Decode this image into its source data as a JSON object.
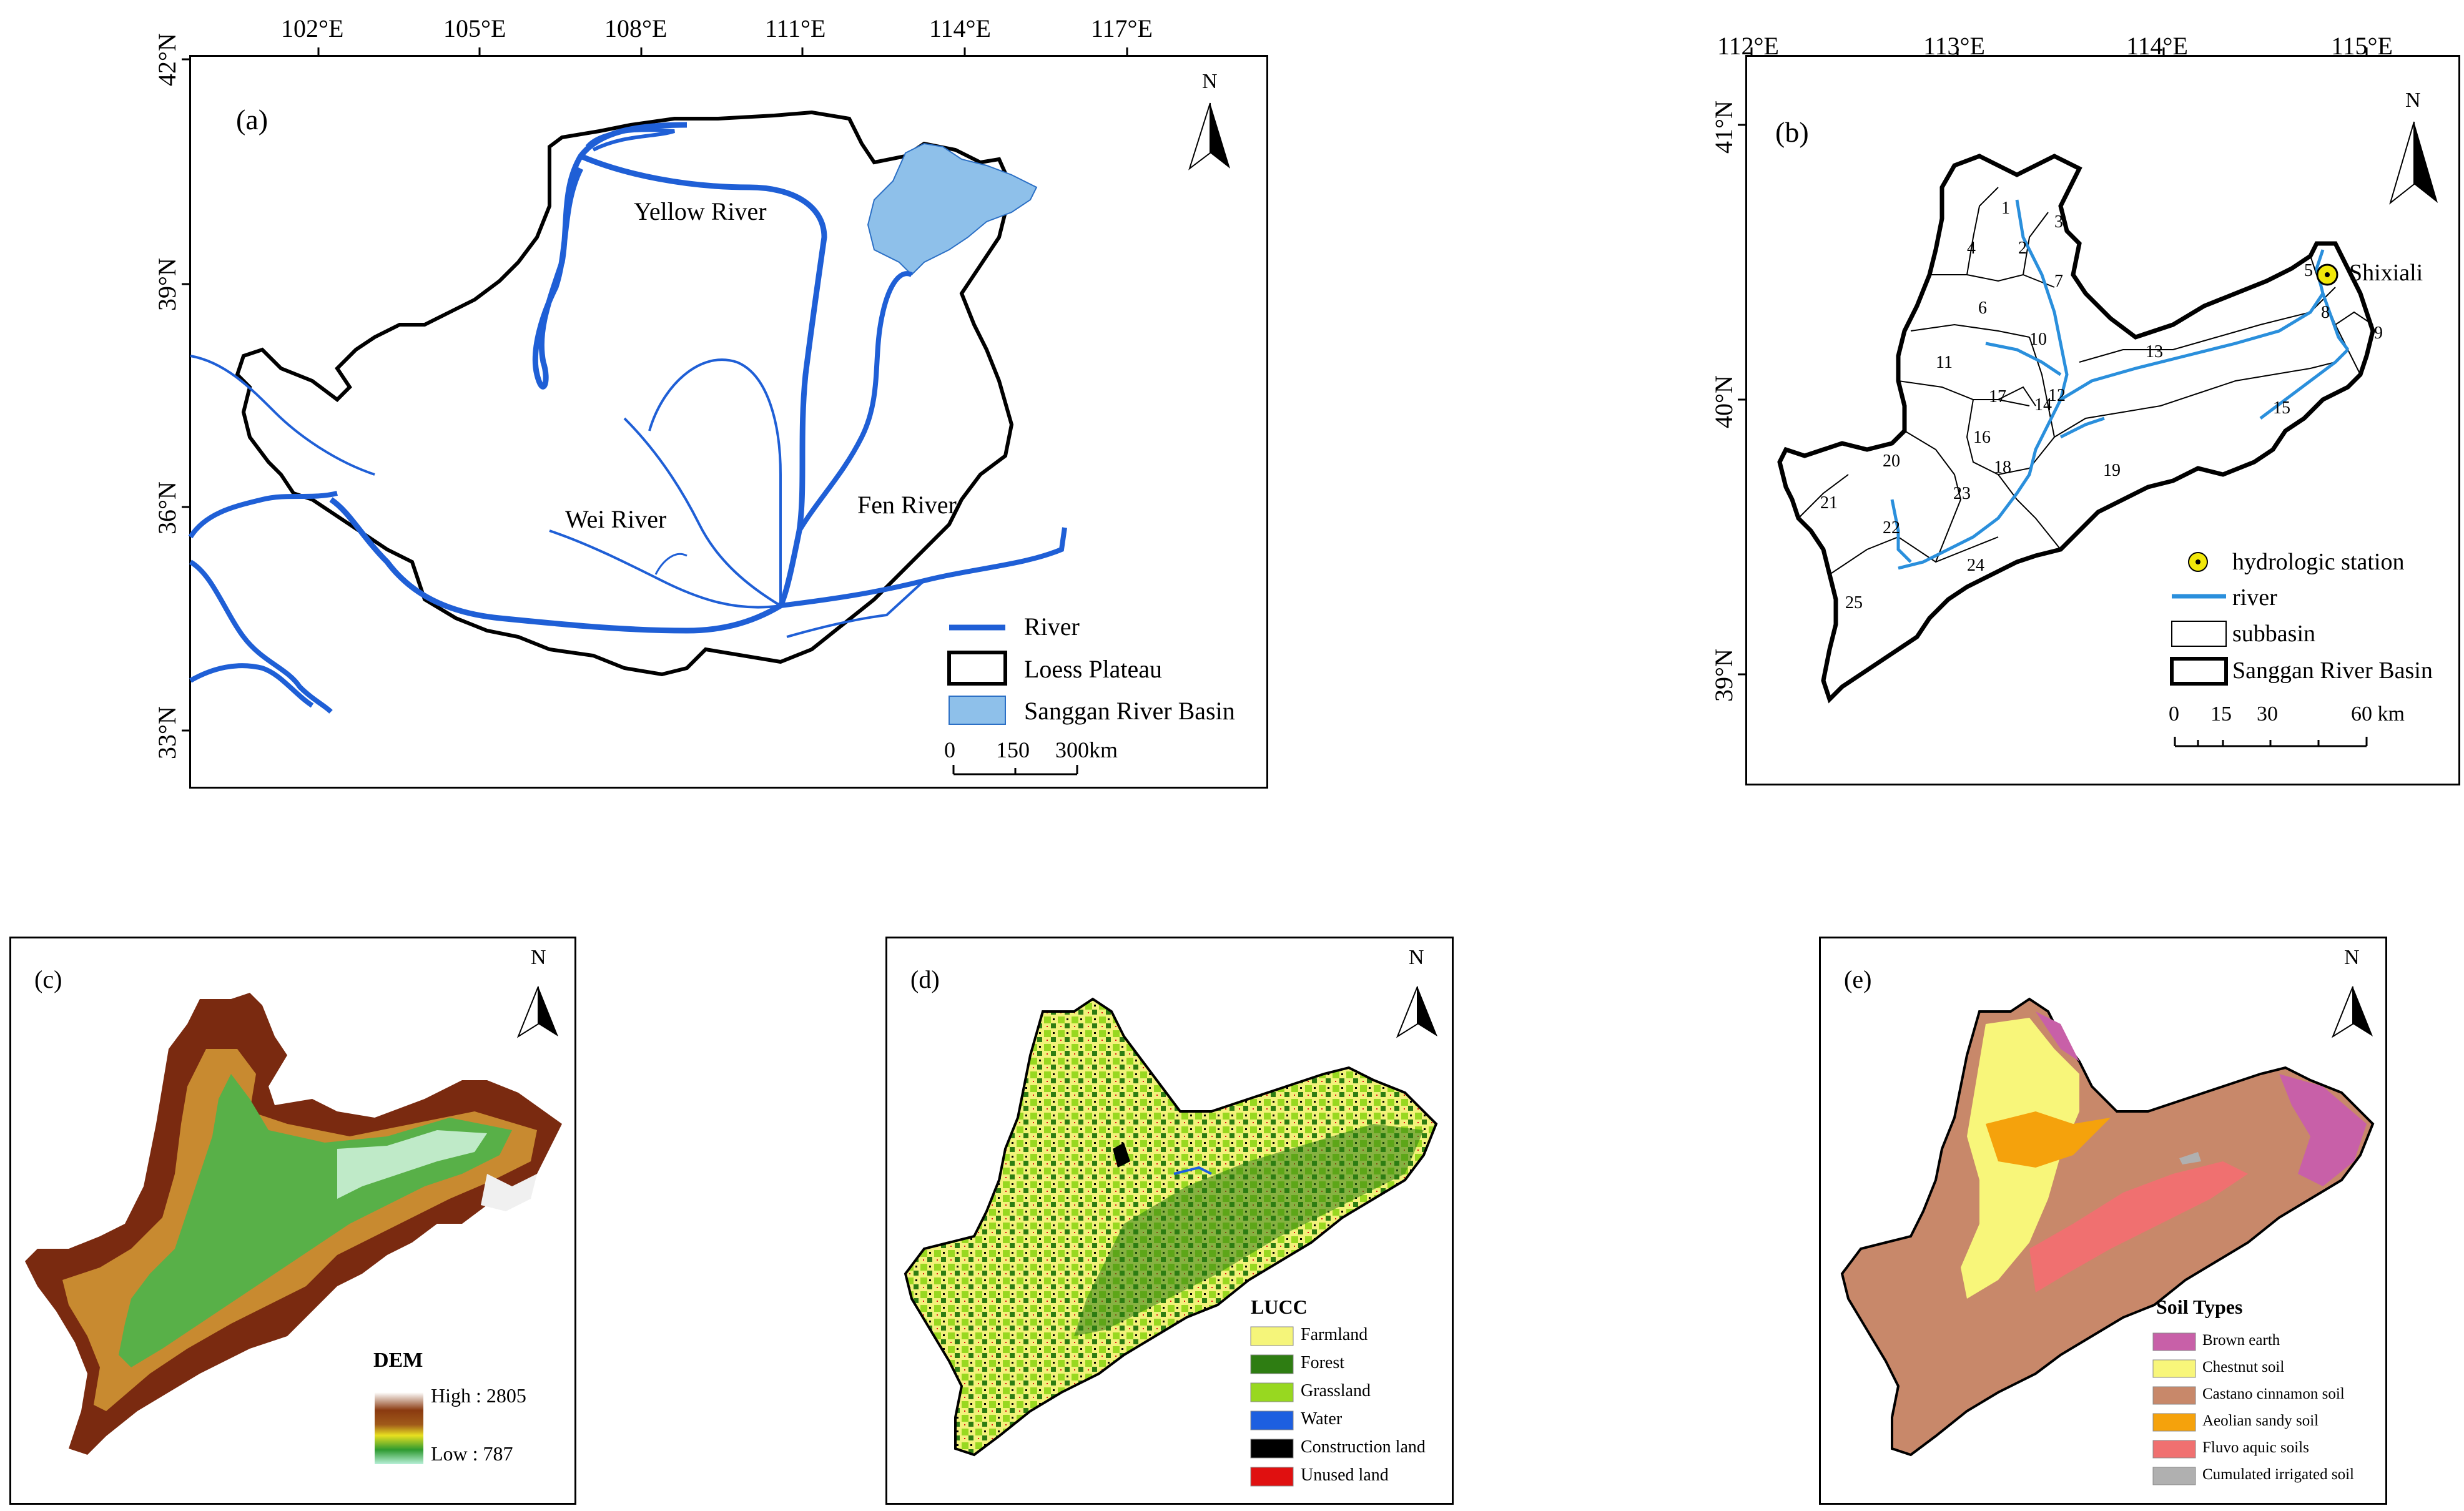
{
  "panel_a": {
    "label": "(a)",
    "lon_ticks": [
      "102°E",
      "105°E",
      "108°E",
      "111°E",
      "114°E",
      "117°E"
    ],
    "lat_ticks": [
      "42°N",
      "39°N",
      "36°N",
      "33°N"
    ],
    "rivers": [
      "Yellow River",
      "Wei River",
      "Fen River"
    ],
    "north": "N",
    "legend": [
      "River",
      "Loess Plateau",
      "Sanggan River Basin"
    ],
    "scale": [
      "0",
      "150",
      "300km"
    ],
    "colors": {
      "river": "#1f5fd6",
      "basin": "#8ec0ea"
    }
  },
  "panel_b": {
    "label": "(b)",
    "lon_ticks": [
      "112°E",
      "113°E",
      "114°E",
      "115°E"
    ],
    "lat_ticks": [
      "41°N",
      "40°N",
      "39°N"
    ],
    "station": "Shixiali",
    "north": "N",
    "subbasins": [
      "1",
      "2",
      "3",
      "4",
      "5",
      "6",
      "7",
      "8",
      "9",
      "10",
      "11",
      "12",
      "13",
      "14",
      "15",
      "16",
      "17",
      "18",
      "19",
      "20",
      "21",
      "22",
      "23",
      "24",
      "25"
    ],
    "legend": [
      "hydrologic station",
      "river",
      "subbasin",
      "Sanggan River Basin"
    ],
    "scale": [
      "0",
      "15",
      "30",
      "60 km"
    ],
    "colors": {
      "river": "#2a8fdc",
      "station": "#f1e80a"
    }
  },
  "panel_c": {
    "label": "(c)",
    "north": "N",
    "legend_title": "DEM",
    "high": "High : 2805",
    "low": "Low : 787"
  },
  "panel_d": {
    "label": "(d)",
    "north": "N",
    "legend_title": "LUCC",
    "classes": [
      {
        "name": "Farmland",
        "color": "#f5f57a"
      },
      {
        "name": "Forest",
        "color": "#2e7d12"
      },
      {
        "name": "Grassland",
        "color": "#98d820"
      },
      {
        "name": "Water",
        "color": "#1d5fe0"
      },
      {
        "name": "Construction land",
        "color": "#000000"
      },
      {
        "name": "Unused land",
        "color": "#e01010"
      }
    ]
  },
  "panel_e": {
    "label": "(e)",
    "north": "N",
    "legend_title": "Soil Types",
    "classes": [
      {
        "name": "Brown earth",
        "color": "#c860a8"
      },
      {
        "name": "Chestnut soil",
        "color": "#f8f67a"
      },
      {
        "name": "Castano cinnamon soil",
        "color": "#c8886a"
      },
      {
        "name": "Aeolian sandy soil",
        "color": "#f5a20c"
      },
      {
        "name": "Fluvo aquic soils",
        "color": "#f07070"
      },
      {
        "name": "Cumulated irrigated soil",
        "color": "#b0b0b0"
      }
    ]
  }
}
